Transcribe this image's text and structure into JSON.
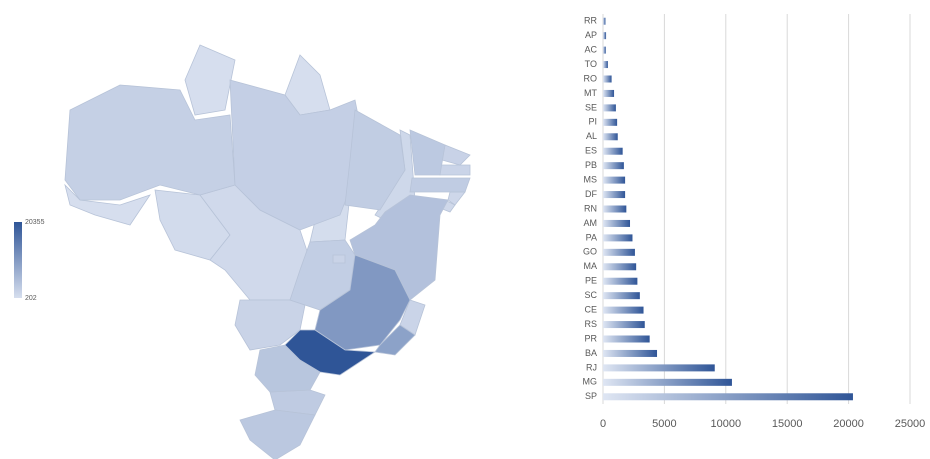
{
  "chart_data": [
    {
      "type": "map",
      "clim": [
        202,
        20355
      ],
      "cticks": [
        20355,
        202
      ],
      "low_color": "#d6deee",
      "high_color": "#2f5597",
      "border_color": "#b7c3d8"
    },
    {
      "type": "hbar",
      "categories": [
        "RR",
        "AP",
        "AC",
        "TO",
        "RO",
        "MT",
        "SE",
        "PI",
        "AL",
        "ES",
        "PB",
        "MS",
        "DF",
        "RN",
        "AM",
        "PA",
        "GO",
        "MA",
        "PE",
        "SC",
        "CE",
        "RS",
        "PR",
        "BA",
        "RJ",
        "MG",
        "SP"
      ],
      "values": [
        202,
        250,
        230,
        400,
        700,
        900,
        1050,
        1150,
        1200,
        1600,
        1700,
        1800,
        1800,
        1900,
        2200,
        2400,
        2600,
        2700,
        2800,
        3000,
        3300,
        3400,
        3800,
        4400,
        9100,
        10500,
        20355
      ],
      "color": "#2f5597",
      "light_color": "#dfe6f3",
      "xlim": [
        0,
        25000
      ],
      "xticks": [
        0,
        5000,
        10000,
        15000,
        20000,
        25000
      ],
      "grid": true
    }
  ]
}
